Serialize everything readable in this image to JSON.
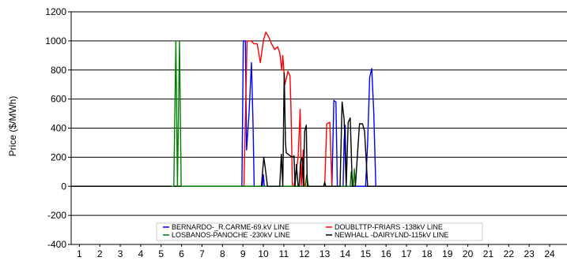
{
  "chart_data": {
    "type": "line",
    "title": "",
    "xlabel": "",
    "ylabel": "Price ($/MWh)",
    "xlim": [
      0.6,
      24.85
    ],
    "ylim": [
      -400,
      1200
    ],
    "y_ticks": [
      -400,
      -200,
      0,
      200,
      400,
      600,
      800,
      1000,
      1200
    ],
    "x_ticks": [
      1,
      2,
      3,
      4,
      5,
      6,
      7,
      8,
      9,
      10,
      11,
      12,
      13,
      14,
      15,
      16,
      17,
      18,
      19,
      20,
      21,
      22,
      23,
      24
    ],
    "grid": "horizontal",
    "legend": "bottom-center",
    "series": [
      {
        "name": "BERNARDO-_R.CARME-69.kV LINE",
        "color": "#0000ff",
        "x": [
          8.95,
          9.02,
          9.12,
          9.18,
          9.3,
          9.42,
          9.5,
          9.55,
          9.62,
          9.95,
          10.0,
          10.05,
          10.15,
          13.35,
          13.45,
          13.55,
          13.62,
          13.9,
          13.95,
          14.0,
          14.05,
          15.0,
          15.1,
          15.2,
          15.3,
          15.4,
          15.5
        ],
        "y": [
          0,
          1000,
          1000,
          250,
          500,
          850,
          400,
          0,
          0,
          0,
          80,
          0,
          0,
          0,
          590,
          580,
          0,
          0,
          320,
          420,
          0,
          0,
          300,
          750,
          810,
          500,
          0
        ]
      },
      {
        "name": "DOUBLTTP-FRIARS -138kV LINE",
        "color": "#ff0000",
        "x": [
          9.05,
          9.2,
          9.4,
          9.55,
          9.7,
          9.85,
          10.0,
          10.12,
          10.25,
          10.4,
          10.55,
          10.7,
          10.8,
          10.9,
          10.95,
          11.05,
          11.2,
          11.3,
          11.35,
          11.42,
          11.5,
          11.7,
          11.8,
          11.85,
          11.95,
          12.0,
          12.05,
          13.0,
          13.1,
          13.25,
          13.35
        ],
        "y": [
          0,
          1000,
          1000,
          980,
          980,
          850,
          1000,
          1060,
          1030,
          980,
          940,
          960,
          920,
          800,
          900,
          700,
          790,
          760,
          550,
          0,
          0,
          200,
          530,
          0,
          250,
          0,
          0,
          0,
          430,
          440,
          0
        ]
      },
      {
        "name": "LOSBANOS-PANOCHE -230kV LINE",
        "color": "#008000",
        "x": [
          5.5,
          5.62,
          5.72,
          5.8,
          5.9,
          5.98,
          6.08,
          12.05,
          12.12,
          12.2,
          14.25,
          14.3,
          14.4,
          14.45,
          14.5
        ],
        "y": [
          0,
          0,
          1000,
          0,
          1000,
          0,
          0,
          0,
          80,
          0,
          0,
          100,
          0,
          120,
          0
        ]
      },
      {
        "name": "NEWHALL -DAIRYLND-115kV LINE",
        "color": "#000000",
        "x": [
          9.9,
          10.02,
          10.1,
          10.2,
          10.8,
          10.88,
          10.95,
          11.02,
          11.08,
          11.12,
          11.3,
          11.45,
          11.5,
          11.55,
          11.62,
          11.7,
          11.75,
          11.82,
          11.9,
          11.95,
          12.02,
          12.1,
          12.15,
          12.25,
          12.95,
          13.0,
          13.05,
          13.75,
          13.85,
          13.95,
          14.05,
          14.15,
          14.25,
          14.35,
          14.45,
          14.5,
          14.7,
          14.85,
          14.95,
          15.1,
          15.2
        ],
        "y": [
          0,
          200,
          120,
          0,
          0,
          220,
          0,
          780,
          300,
          230,
          210,
          200,
          210,
          0,
          150,
          0,
          0,
          170,
          200,
          0,
          380,
          420,
          0,
          0,
          0,
          30,
          0,
          0,
          580,
          460,
          0,
          440,
          470,
          0,
          0,
          0,
          430,
          430,
          380,
          0,
          0
        ]
      }
    ]
  }
}
